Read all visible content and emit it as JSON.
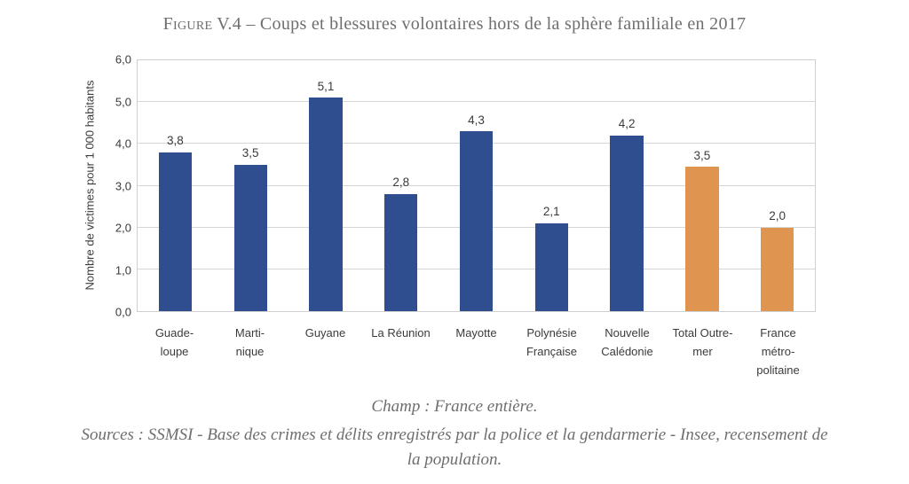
{
  "title": {
    "prefix": "Figure",
    "rest": " V.4 – Coups et blessures volontaires hors de la sphère familiale en 2017"
  },
  "chart_data": {
    "type": "bar",
    "title": "Figure V.4 – Coups et blessures volontaires hors de la sphère familiale en 2017",
    "xlabel": "",
    "ylabel": "Nombre de victimes pour 1 000 habitants",
    "ylim": [
      0,
      6
    ],
    "grid": true,
    "legend": "none",
    "ytick_labels": [
      "0,0",
      "1,0",
      "2,0",
      "3,0",
      "4,0",
      "5,0",
      "6,0"
    ],
    "categories": [
      "Guade-\nloupe",
      "Marti-\nnique",
      "Guyane",
      "La Réunion",
      "Mayotte",
      "Polynésie\nFrançaise",
      "Nouvelle\nCalédonie",
      "Total Outre-\nmer",
      "France\nmétro-\npolitaine"
    ],
    "values": [
      3.8,
      3.5,
      5.1,
      2.8,
      4.3,
      2.1,
      4.2,
      3.45,
      2.0
    ],
    "value_labels": [
      "3,8",
      "3,5",
      "5,1",
      "2,8",
      "4,3",
      "2,1",
      "4,2",
      "3,5",
      "2,0"
    ],
    "bar_colors": [
      "#2F4E8F",
      "#2F4E8F",
      "#2F4E8F",
      "#2F4E8F",
      "#2F4E8F",
      "#2F4E8F",
      "#2F4E8F",
      "#DF9450",
      "#DF9450"
    ],
    "colors": {
      "blue": "#2F4E8F",
      "orange": "#DF9450",
      "grid": "#D6D6D6",
      "axis_text": "#3B3B3B",
      "title_text": "#6E6E6E"
    }
  },
  "footer": {
    "champ": "Champ : France entière.",
    "sources_lines": [
      "Sources : SSMSI - Base des crimes et délits enregistrés par la police et la gendarmerie - Insee, recensement de",
      "la population."
    ]
  }
}
